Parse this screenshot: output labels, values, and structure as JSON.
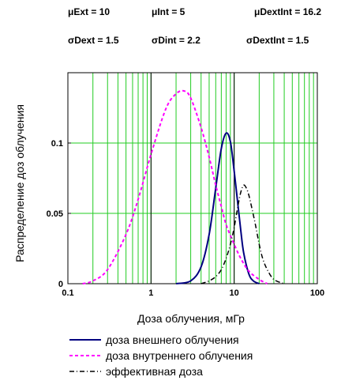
{
  "params": [
    {
      "label": "μExt = 10"
    },
    {
      "label": "μInt = 5"
    },
    {
      "label": "μDextInt = 16.2"
    },
    {
      "label": "σDext = 1.5"
    },
    {
      "label": "σDint = 2.2"
    },
    {
      "label": "σDextInt = 1.5"
    }
  ],
  "chart_data": {
    "type": "line",
    "xscale": "log",
    "xlim": [
      0.1,
      100
    ],
    "ylim": [
      0,
      0.15
    ],
    "xticks": [
      "0.1",
      "1",
      "10",
      "100"
    ],
    "yticks": [
      "0",
      "0.05",
      "0.1"
    ],
    "xlabel": "Доза облучения, мГр",
    "ylabel": "Распределение доз облучения",
    "grid": true,
    "colors": {
      "grid": "#22cc22",
      "ext": "#000080",
      "int": "#ff00ff",
      "eff": "#000000"
    },
    "series": [
      {
        "name": "доза внешнего облучения",
        "style": "solid",
        "x": [
          2,
          3,
          4,
          5,
          6,
          7,
          8,
          9,
          10,
          11,
          12,
          13,
          15,
          17,
          20
        ],
        "y": [
          0.0,
          0.002,
          0.012,
          0.035,
          0.068,
          0.096,
          0.107,
          0.101,
          0.08,
          0.058,
          0.038,
          0.022,
          0.007,
          0.002,
          0.0
        ]
      },
      {
        "name": "доза внутреннего облучения",
        "style": "dashed",
        "x": [
          0.15,
          0.2,
          0.3,
          0.5,
          0.7,
          1,
          1.5,
          2,
          2.5,
          3,
          4,
          5,
          6,
          7,
          8,
          10,
          12,
          15,
          20,
          25
        ],
        "y": [
          0.0,
          0.002,
          0.01,
          0.035,
          0.06,
          0.092,
          0.124,
          0.135,
          0.137,
          0.132,
          0.111,
          0.09,
          0.07,
          0.055,
          0.042,
          0.028,
          0.018,
          0.009,
          0.003,
          0.0
        ]
      },
      {
        "name": "эффективная доза",
        "style": "dashdot",
        "x": [
          4,
          5,
          6,
          7,
          8,
          9,
          10,
          11,
          12,
          13,
          14,
          15,
          16,
          18,
          20,
          22,
          25,
          30,
          40
        ],
        "y": [
          0.0,
          0.002,
          0.005,
          0.01,
          0.018,
          0.028,
          0.04,
          0.054,
          0.065,
          0.07,
          0.068,
          0.063,
          0.056,
          0.042,
          0.028,
          0.018,
          0.01,
          0.003,
          0.0
        ]
      }
    ]
  }
}
